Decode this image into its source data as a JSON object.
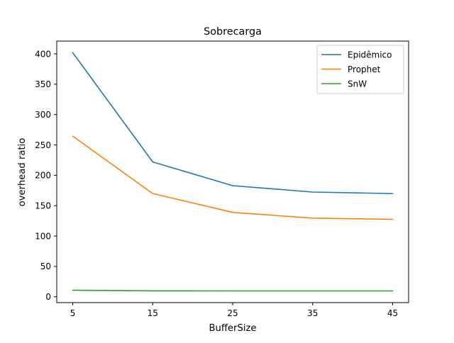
{
  "chart_data": {
    "type": "line",
    "title": "Sobrecarga",
    "xlabel": "BufferSize",
    "ylabel": "overhead ratio",
    "x": [
      5,
      15,
      25,
      35,
      45
    ],
    "xticks": [
      5,
      15,
      25,
      35,
      45
    ],
    "xlim": [
      3.0,
      47.0
    ],
    "ylim": [
      -9.6,
      421.0
    ],
    "yticks": [
      0,
      50,
      100,
      150,
      200,
      250,
      300,
      350,
      400
    ],
    "grid": false,
    "legend_position": "top-right",
    "series": [
      {
        "name": "Epidêmico",
        "color": "#1f77b4",
        "values": [
          402,
          222,
          183,
          172.5,
          170
        ]
      },
      {
        "name": "Prophet",
        "color": "#ff7f0e",
        "values": [
          264.5,
          170,
          139,
          129.5,
          127.5
        ]
      },
      {
        "name": "SnW",
        "color": "#2ca02c",
        "values": [
          10.8,
          9.8,
          9.7,
          9.7,
          9.7
        ]
      }
    ]
  }
}
